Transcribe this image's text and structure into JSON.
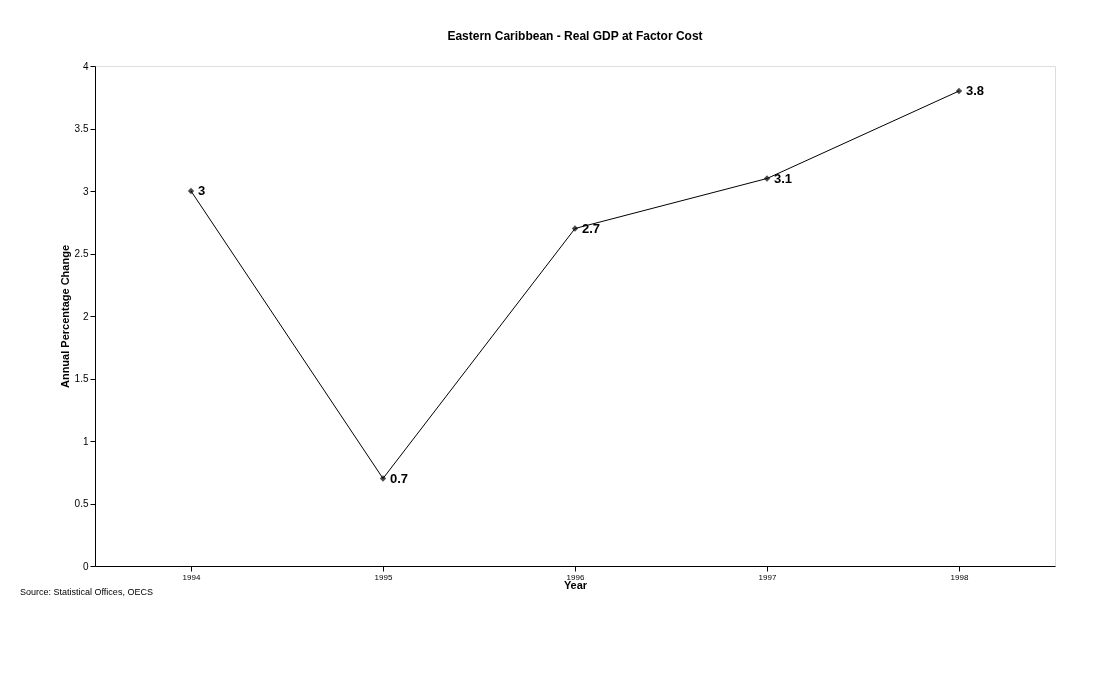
{
  "chart_data": {
    "type": "line",
    "title": "Eastern Caribbean - Real GDP at Factor Cost",
    "xlabel": "Year",
    "ylabel": "Annual Percentage Change",
    "categories": [
      "1994",
      "1995",
      "1996",
      "1997",
      "1998"
    ],
    "series": [
      {
        "color": "#000000",
        "values": [
          3,
          0.7,
          2.7,
          3.1,
          3.8
        ]
      }
    ],
    "ylim": [
      0,
      4
    ],
    "yticks": [
      0,
      0.5,
      1,
      1.5,
      2,
      2.5,
      3,
      3.5,
      4
    ],
    "grid": false,
    "marker": "diamond",
    "line_style": "solid",
    "data_labels": true,
    "annotations": [
      "Source: Statistical Offices, OECS"
    ]
  }
}
